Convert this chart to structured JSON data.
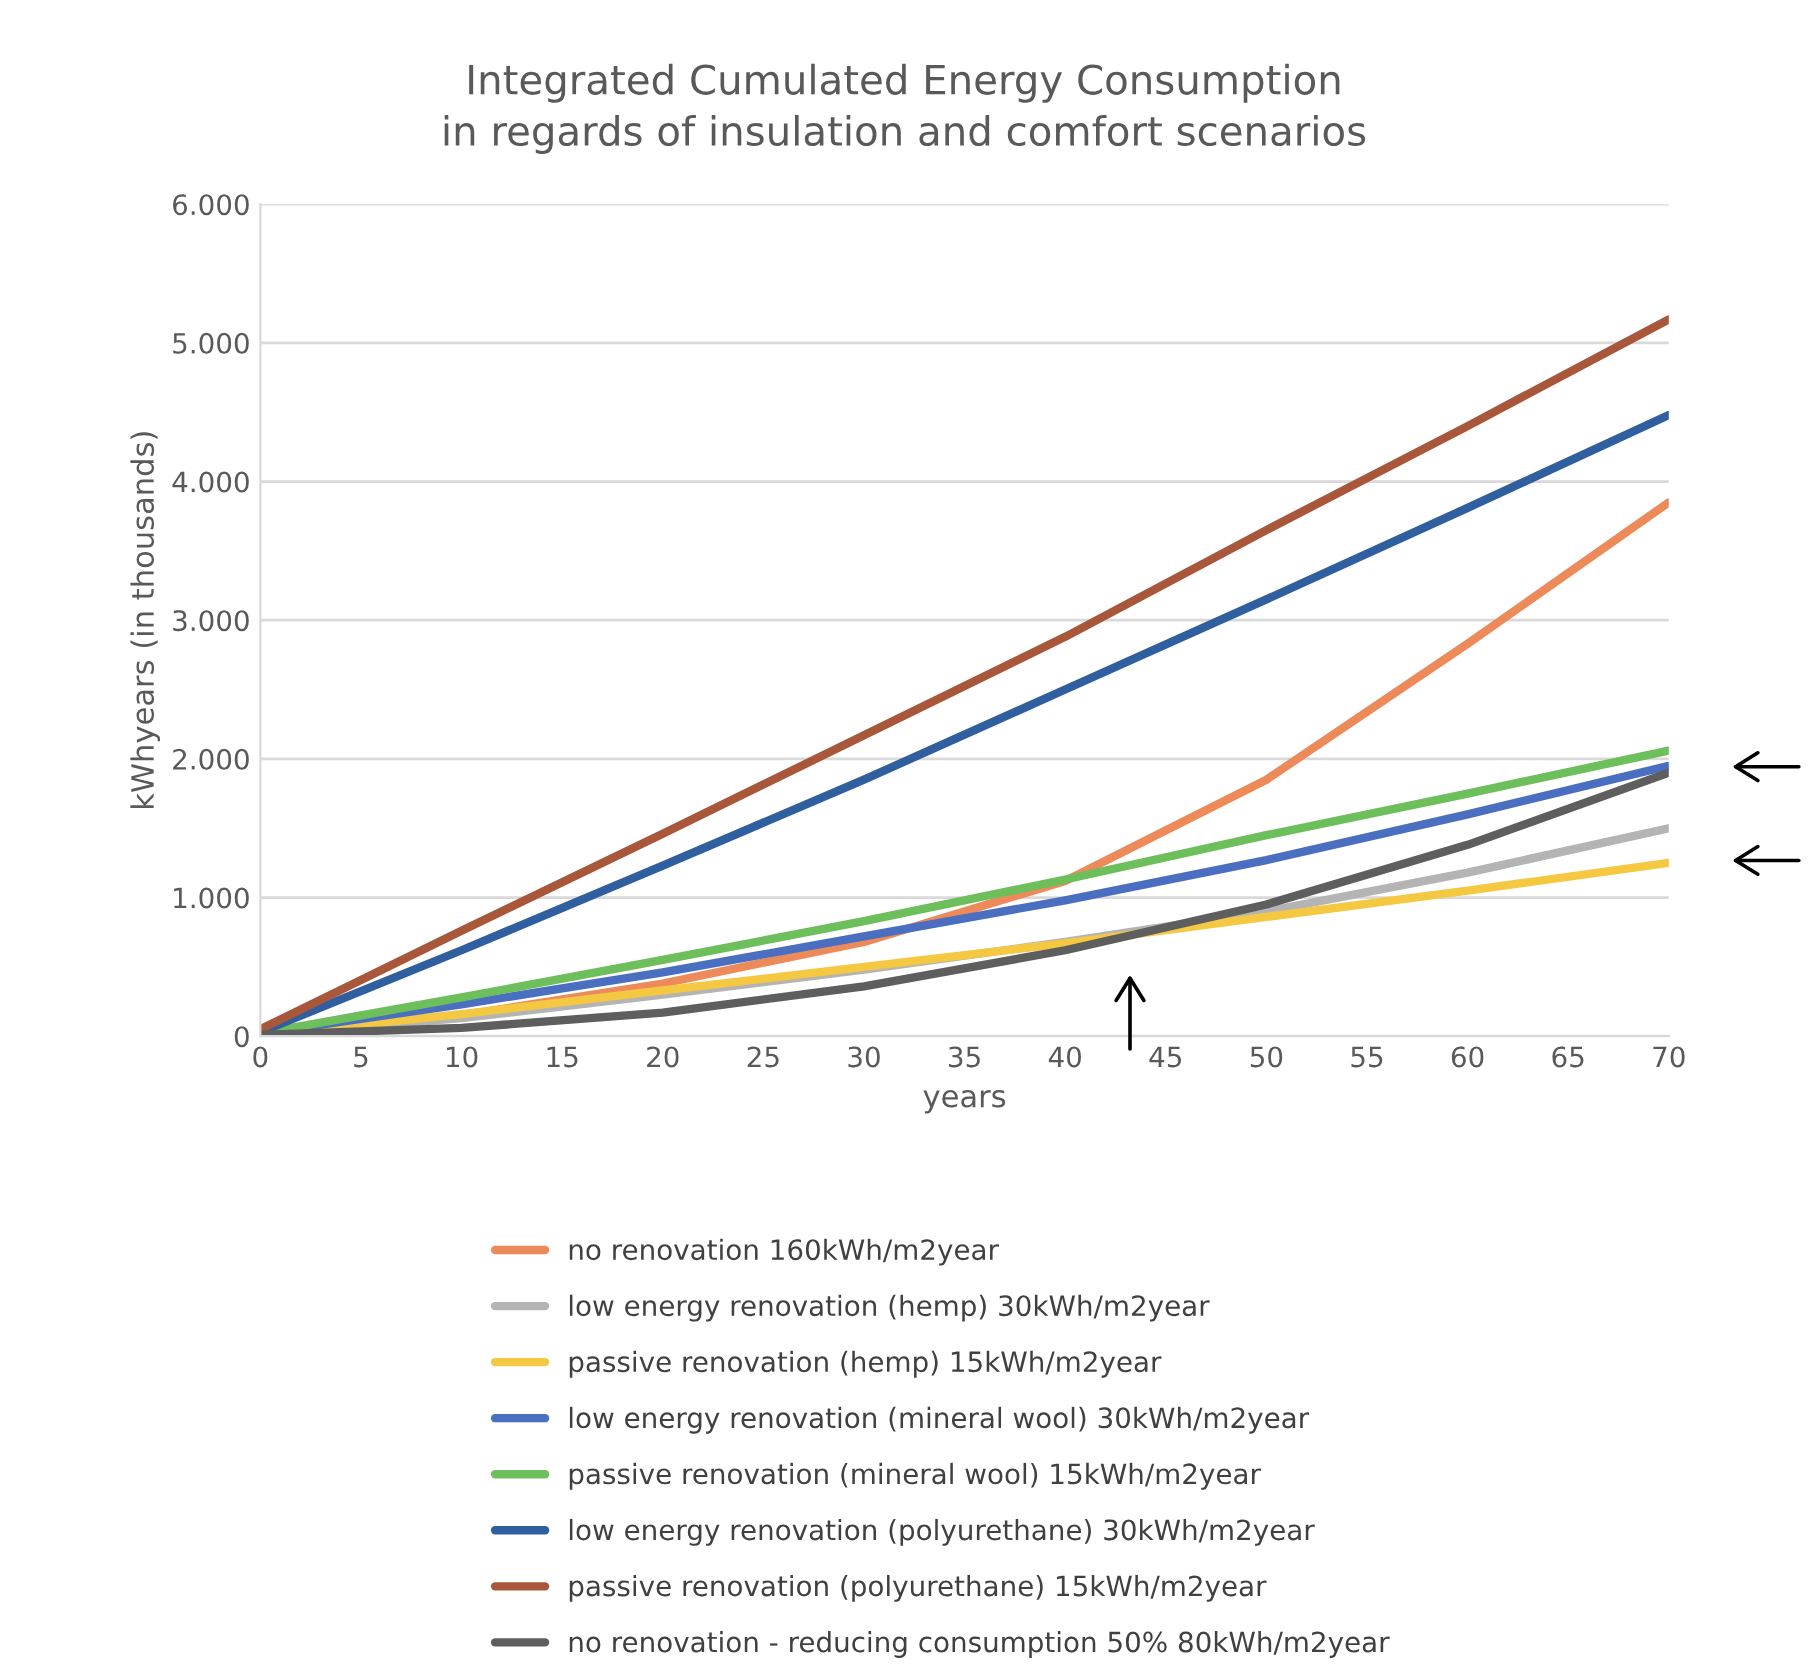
{
  "chart_data": {
    "type": "line",
    "title": "Integrated Cumulated Energy Consumption\nin regards of insulation and comfort scenarios",
    "xlabel": "years",
    "ylabel": "kWhyears (in thousands)",
    "x": [
      0,
      10,
      20,
      30,
      40,
      50,
      60,
      70
    ],
    "xlim": [
      0,
      70
    ],
    "xticks": [
      0,
      5,
      10,
      15,
      20,
      25,
      30,
      35,
      40,
      45,
      50,
      55,
      60,
      65,
      70
    ],
    "ylim": [
      0,
      6000
    ],
    "yticks": [
      0,
      {
        "value": 1000,
        "label": "1.000"
      },
      {
        "value": 2000,
        "label": "2.000"
      },
      {
        "value": 3000,
        "label": "3.000"
      },
      {
        "value": 4000,
        "label": "4.000"
      },
      {
        "value": 5000,
        "label": "5.000"
      },
      {
        "value": 6000,
        "label": "6.000"
      }
    ],
    "grid": "y",
    "legend": "bottom",
    "marker": "none",
    "line_style": "solid",
    "series": [
      {
        "name": "no renovation 160kWh/m2year",
        "color": "#ed8a5a",
        "values": [
          20,
          150,
          380,
          680,
          1120,
          1850,
          2830,
          3850
        ]
      },
      {
        "name": "low energy renovation (hemp) 30kWh/m2year",
        "color": "#b4b4b4",
        "values": [
          10,
          130,
          300,
          480,
          680,
          900,
          1180,
          1500
        ]
      },
      {
        "name": "passive renovation (hemp) 15kWh/m2year",
        "color": "#f5c842",
        "values": [
          10,
          160,
          330,
          500,
          670,
          860,
          1050,
          1250
        ]
      },
      {
        "name": "low energy renovation (mineral wool) 30kWh/m2year",
        "color": "#4a6fc0",
        "values": [
          20,
          230,
          460,
          720,
          980,
          1270,
          1600,
          1950
        ]
      },
      {
        "name": "passive renovation (mineral wool) 15kWh/m2year",
        "color": "#6cbf5a",
        "values": [
          20,
          280,
          550,
          830,
          1130,
          1450,
          1750,
          2060
        ]
      },
      {
        "name": "low energy renovation (polyurethane) 30kWh/m2year",
        "color": "#2f5f9e",
        "values": [
          30,
          620,
          1230,
          1850,
          2500,
          3150,
          3810,
          4480
        ]
      },
      {
        "name": "passive renovation (polyurethane) 15kWh/m2year",
        "color": "#a9573a",
        "values": [
          50,
          760,
          1460,
          2170,
          2880,
          3650,
          4400,
          5170
        ]
      },
      {
        "name": "no renovation - reducing consumption 50% 80kWh/m2year",
        "color": "#5e5e5e",
        "values": [
          10,
          60,
          170,
          360,
          620,
          950,
          1380,
          1900
        ]
      }
    ]
  }
}
